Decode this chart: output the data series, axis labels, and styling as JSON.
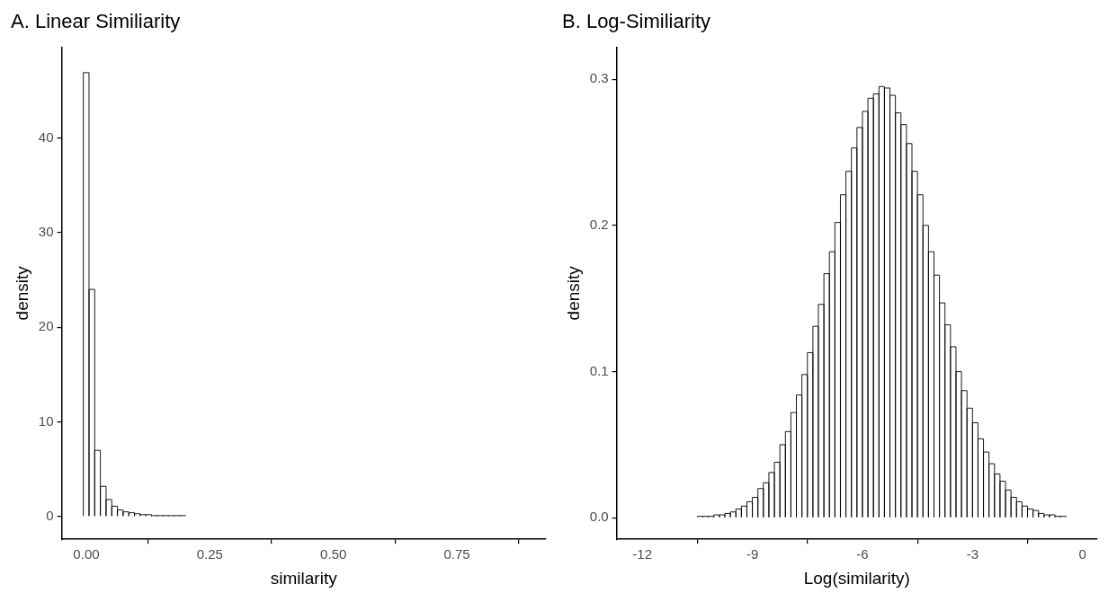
{
  "chart_data": [
    {
      "type": "histogram",
      "title": "A. Linear Similiarity",
      "xlabel": "similarity",
      "ylabel": "density",
      "bins": [
        -0.006,
        0.0055,
        0.017,
        0.0285,
        0.04,
        0.0515,
        0.063,
        0.0745,
        0.086,
        0.0975,
        0.109,
        0.1205,
        0.132,
        0.1435,
        0.155,
        0.1665,
        0.178,
        0.1895,
        0.201,
        0.2125,
        0.224,
        0.2355,
        0.247,
        0.2585,
        0.27,
        0.2815,
        0.293,
        0.3045,
        0.316,
        0.3275,
        0.339,
        0.3505,
        0.362,
        0.3735,
        0.385,
        0.3965,
        0.408,
        0.4195,
        0.431,
        0.4425,
        0.454,
        0.4655,
        0.477,
        0.4885,
        0.5,
        0.5115,
        0.523,
        0.5345,
        0.546,
        0.5575,
        0.569,
        0.5805,
        0.592,
        0.6035,
        0.615,
        0.6265,
        0.638,
        0.6495,
        0.661,
        0.6725,
        0.684,
        0.6955,
        0.707,
        0.7185,
        0.73,
        0.7415,
        0.753,
        0.7645,
        0.776,
        0.7875,
        0.799,
        0.8105,
        0.822,
        0.8335,
        0.845,
        0.8565,
        0.868,
        0.8795,
        0.891,
        0.9025,
        0.914
      ],
      "values": [
        46.9,
        24.0,
        7.0,
        3.2,
        1.8,
        1.1,
        0.7,
        0.5,
        0.4,
        0.3,
        0.2,
        0.2,
        0.1,
        0.1,
        0.1,
        0.1,
        0.1,
        0.1,
        0,
        0,
        0,
        0,
        0,
        0,
        0,
        0,
        0,
        0,
        0,
        0,
        0,
        0,
        0,
        0,
        0,
        0,
        0,
        0,
        0,
        0,
        0,
        0,
        0,
        0,
        0,
        0,
        0,
        0,
        0,
        0,
        0,
        0,
        0,
        0,
        0,
        0,
        0,
        0,
        0,
        0,
        0,
        0,
        0,
        0,
        0,
        0,
        0,
        0,
        0,
        0,
        0,
        0,
        0,
        0,
        0,
        0,
        0,
        0,
        0,
        0
      ],
      "color": "#ffffff",
      "xlim": [
        -0.05,
        0.93
      ],
      "xticks": [
        {
          "value": 0,
          "label": "0.00"
        },
        {
          "value": 0.25,
          "label": "0.25"
        },
        {
          "value": 0.5,
          "label": "0.50"
        },
        {
          "value": 0.75,
          "label": "0.75"
        }
      ],
      "ylim": [
        -2.4,
        49.6
      ],
      "yticks": [
        0,
        10,
        20,
        30,
        40
      ],
      "grid": false,
      "legend": false
    },
    {
      "type": "histogram",
      "title": "B. Log-Similiarity",
      "xlabel": "Log(similarity)",
      "ylabel": "density",
      "bins": [
        -12,
        -11.85,
        -11.7,
        -11.55,
        -11.4,
        -11.25,
        -11.1,
        -10.95,
        -10.8,
        -10.65,
        -10.5,
        -10.35,
        -10.2,
        -10.05,
        -9.9,
        -9.75,
        -9.6,
        -9.45,
        -9.3,
        -9.15,
        -9,
        -8.85,
        -8.7,
        -8.55,
        -8.4,
        -8.25,
        -8.1,
        -7.95,
        -7.8,
        -7.65,
        -7.5,
        -7.35,
        -7.2,
        -7.05,
        -6.9,
        -6.75,
        -6.6,
        -6.45,
        -6.3,
        -6.15,
        -6,
        -5.85,
        -5.7,
        -5.55,
        -5.4,
        -5.25,
        -5.1,
        -4.95,
        -4.8,
        -4.65,
        -4.5,
        -4.35,
        -4.2,
        -4.05,
        -3.9,
        -3.75,
        -3.6,
        -3.45,
        -3.3,
        -3.15,
        -3,
        -2.85,
        -2.7,
        -2.55,
        -2.4,
        -2.25,
        -2.1,
        -1.95,
        -1.8,
        -1.65,
        -1.5,
        -1.35,
        -1.2,
        -1.05,
        -0.9,
        -0.75,
        -0.6,
        -0.45,
        -0.3,
        -0.15,
        0
      ],
      "values": [
        0,
        0,
        0,
        0,
        0,
        0,
        0,
        0,
        0,
        0,
        0.001,
        0.001,
        0.001,
        0.002,
        0.002,
        0.003,
        0.004,
        0.006,
        0.008,
        0.011,
        0.014,
        0.02,
        0.024,
        0.031,
        0.038,
        0.05,
        0.059,
        0.072,
        0.084,
        0.098,
        0.113,
        0.131,
        0.146,
        0.167,
        0.182,
        0.202,
        0.221,
        0.237,
        0.253,
        0.267,
        0.278,
        0.287,
        0.29,
        0.295,
        0.294,
        0.289,
        0.277,
        0.269,
        0.256,
        0.237,
        0.221,
        0.2,
        0.182,
        0.166,
        0.147,
        0.132,
        0.117,
        0.1,
        0.087,
        0.075,
        0.065,
        0.054,
        0.045,
        0.037,
        0.03,
        0.025,
        0.019,
        0.014,
        0.011,
        0.008,
        0.006,
        0.005,
        0.003,
        0.002,
        0.002,
        0.001,
        0.001,
        0,
        0,
        0
      ],
      "color": "#ffffff",
      "xlim": [
        -12.7,
        0.4
      ],
      "xticks": [
        -12,
        -9,
        -6,
        -3,
        0
      ],
      "ylim": [
        -0.0147,
        0.322
      ],
      "yticks": [
        {
          "value": 0,
          "label": "0.0"
        },
        {
          "value": 0.1,
          "label": "0.1"
        },
        {
          "value": 0.2,
          "label": "0.2"
        },
        {
          "value": 0.3,
          "label": "0.3"
        }
      ],
      "grid": false,
      "legend": false
    }
  ]
}
